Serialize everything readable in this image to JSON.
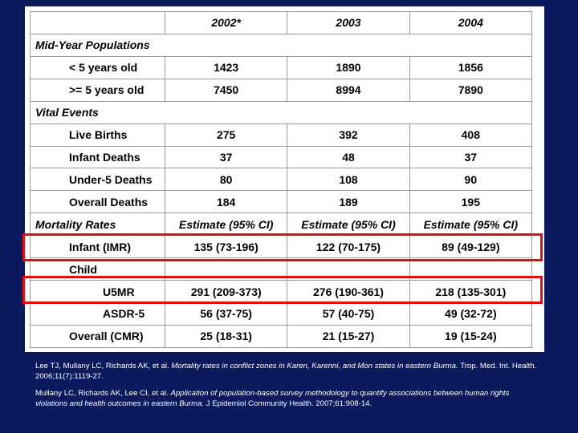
{
  "table": {
    "header": [
      "",
      "2002*",
      "2003",
      "2004"
    ],
    "sections": {
      "populations": "Mid-Year Populations",
      "vital": "Vital Events",
      "mortality": "Mortality Rates"
    },
    "rows": {
      "under5": {
        "label": "< 5 years old",
        "values": [
          "1423",
          "1890",
          "1856"
        ]
      },
      "over5": {
        "label": ">= 5 years old",
        "values": [
          "7450",
          "8994",
          "7890"
        ]
      },
      "births": {
        "label": "Live Births",
        "values": [
          "275",
          "392",
          "408"
        ]
      },
      "infant_deaths": {
        "label": "Infant Deaths",
        "values": [
          "37",
          "48",
          "37"
        ]
      },
      "u5_deaths": {
        "label": "Under-5 Deaths",
        "values": [
          "80",
          "108",
          "90"
        ]
      },
      "overall_deaths": {
        "label": "Overall Deaths",
        "values": [
          "184",
          "189",
          "195"
        ]
      },
      "mortality_header": [
        "Estimate (95% CI)",
        "Estimate (95% CI)",
        "Estimate (95% CI)"
      ],
      "imr": {
        "label": "Infant (IMR)",
        "values": [
          "135 (73-196)",
          "122 (70-175)",
          "89 (49-129)"
        ]
      },
      "child": {
        "label": "Child"
      },
      "u5mr": {
        "label": "U5MR",
        "values": [
          "291 (209-373)",
          "276 (190-361)",
          "218 (135-301)"
        ]
      },
      "asdr5": {
        "label": "ASDR-5",
        "values": [
          "56 (37-75)",
          "57 (40-75)",
          "49 (32-72)"
        ]
      },
      "cmr": {
        "label": "Overall (CMR)",
        "values": [
          "25 (18-31)",
          "21 (15-27)",
          "19 (15-24)"
        ]
      }
    }
  },
  "references": [
    {
      "authors": "Lee TJ, Mullany LC, Richards AK, et al.",
      "title": "Mortality rates in conflict zones in Karen, Karenni, and Mon states in eastern Burma.",
      "source": "Trop. Med. Int. Health. 2006;11(7):1119-27."
    },
    {
      "authors": "Mullany LC, Richards AK, Lee CI, et al.",
      "title": "Application of population-based survey methodology to quantify associations between human rights violations and health outcomes in eastern Burma.",
      "source": "J Epidemiol Community Health. 2007;61:908-14."
    }
  ],
  "colors": {
    "background": "#0a1a5c",
    "highlight": "#e01010"
  }
}
